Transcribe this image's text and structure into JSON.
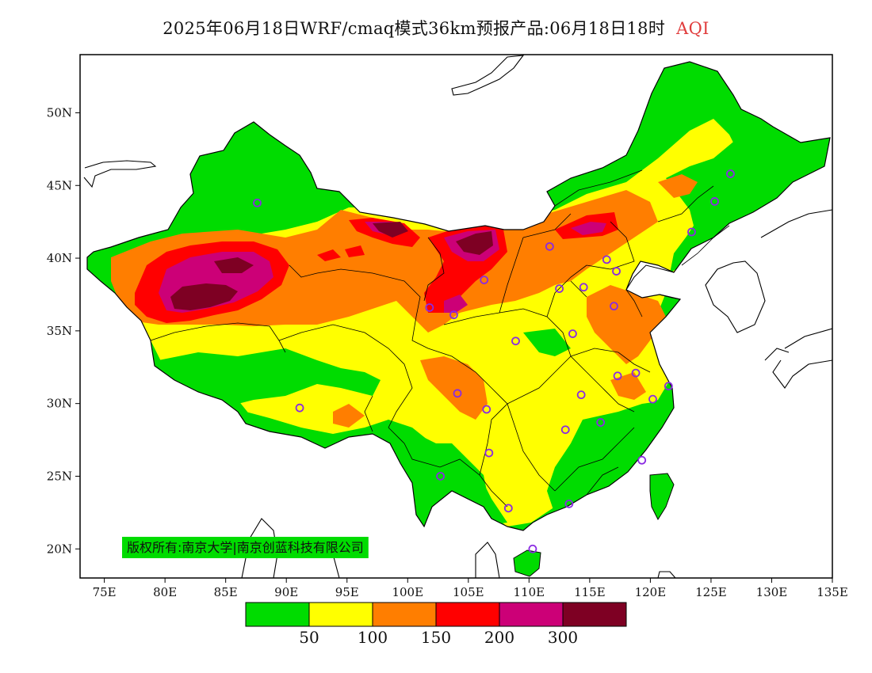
{
  "title": {
    "text": "2025年06月18日WRF/cmaq模式36km预报产品:06月18日18时",
    "variable": "AQI",
    "variable_color": "#e03c3c"
  },
  "copyright": "版权所有:南京大学|南京创蓝科技有限公司",
  "axes": {
    "lon_range": [
      73,
      135
    ],
    "lat_range": [
      18,
      54
    ],
    "x_ticks": [
      "75E",
      "80E",
      "85E",
      "90E",
      "95E",
      "100E",
      "105E",
      "110E",
      "115E",
      "120E",
      "125E",
      "130E",
      "135E"
    ],
    "x_tick_values": [
      75,
      80,
      85,
      90,
      95,
      100,
      105,
      110,
      115,
      120,
      125,
      130,
      135
    ],
    "y_ticks": [
      "20N",
      "25N",
      "30N",
      "35N",
      "40N",
      "45N",
      "50N"
    ],
    "y_tick_values": [
      20,
      25,
      30,
      35,
      40,
      45,
      50
    ]
  },
  "legend": {
    "colors": [
      "#00dc00",
      "#ffff00",
      "#ff7e00",
      "#ff0000",
      "#cc0077",
      "#7e0023"
    ],
    "labels": [
      "50",
      "100",
      "150",
      "200",
      "300"
    ]
  },
  "stations": [
    [
      87.6,
      43.8
    ],
    [
      91.1,
      29.7
    ],
    [
      101.8,
      36.6
    ],
    [
      103.8,
      36.1
    ],
    [
      106.3,
      38.5
    ],
    [
      111.7,
      40.8
    ],
    [
      112.5,
      37.9
    ],
    [
      114.5,
      38.0
    ],
    [
      116.4,
      39.9
    ],
    [
      117.2,
      39.1
    ],
    [
      123.4,
      41.8
    ],
    [
      125.3,
      43.9
    ],
    [
      126.6,
      45.8
    ],
    [
      117.0,
      36.7
    ],
    [
      113.6,
      34.8
    ],
    [
      108.9,
      34.3
    ],
    [
      104.1,
      30.7
    ],
    [
      106.5,
      29.6
    ],
    [
      114.3,
      30.6
    ],
    [
      113.0,
      28.2
    ],
    [
      115.9,
      28.7
    ],
    [
      117.3,
      31.9
    ],
    [
      118.8,
      32.1
    ],
    [
      120.2,
      30.3
    ],
    [
      121.5,
      31.2
    ],
    [
      119.3,
      26.1
    ],
    [
      113.3,
      23.1
    ],
    [
      108.3,
      22.8
    ],
    [
      110.3,
      20.0
    ],
    [
      102.7,
      25.0
    ],
    [
      106.7,
      26.6
    ]
  ],
  "station_color": "#8a2be2",
  "background_color": "#ffffff"
}
